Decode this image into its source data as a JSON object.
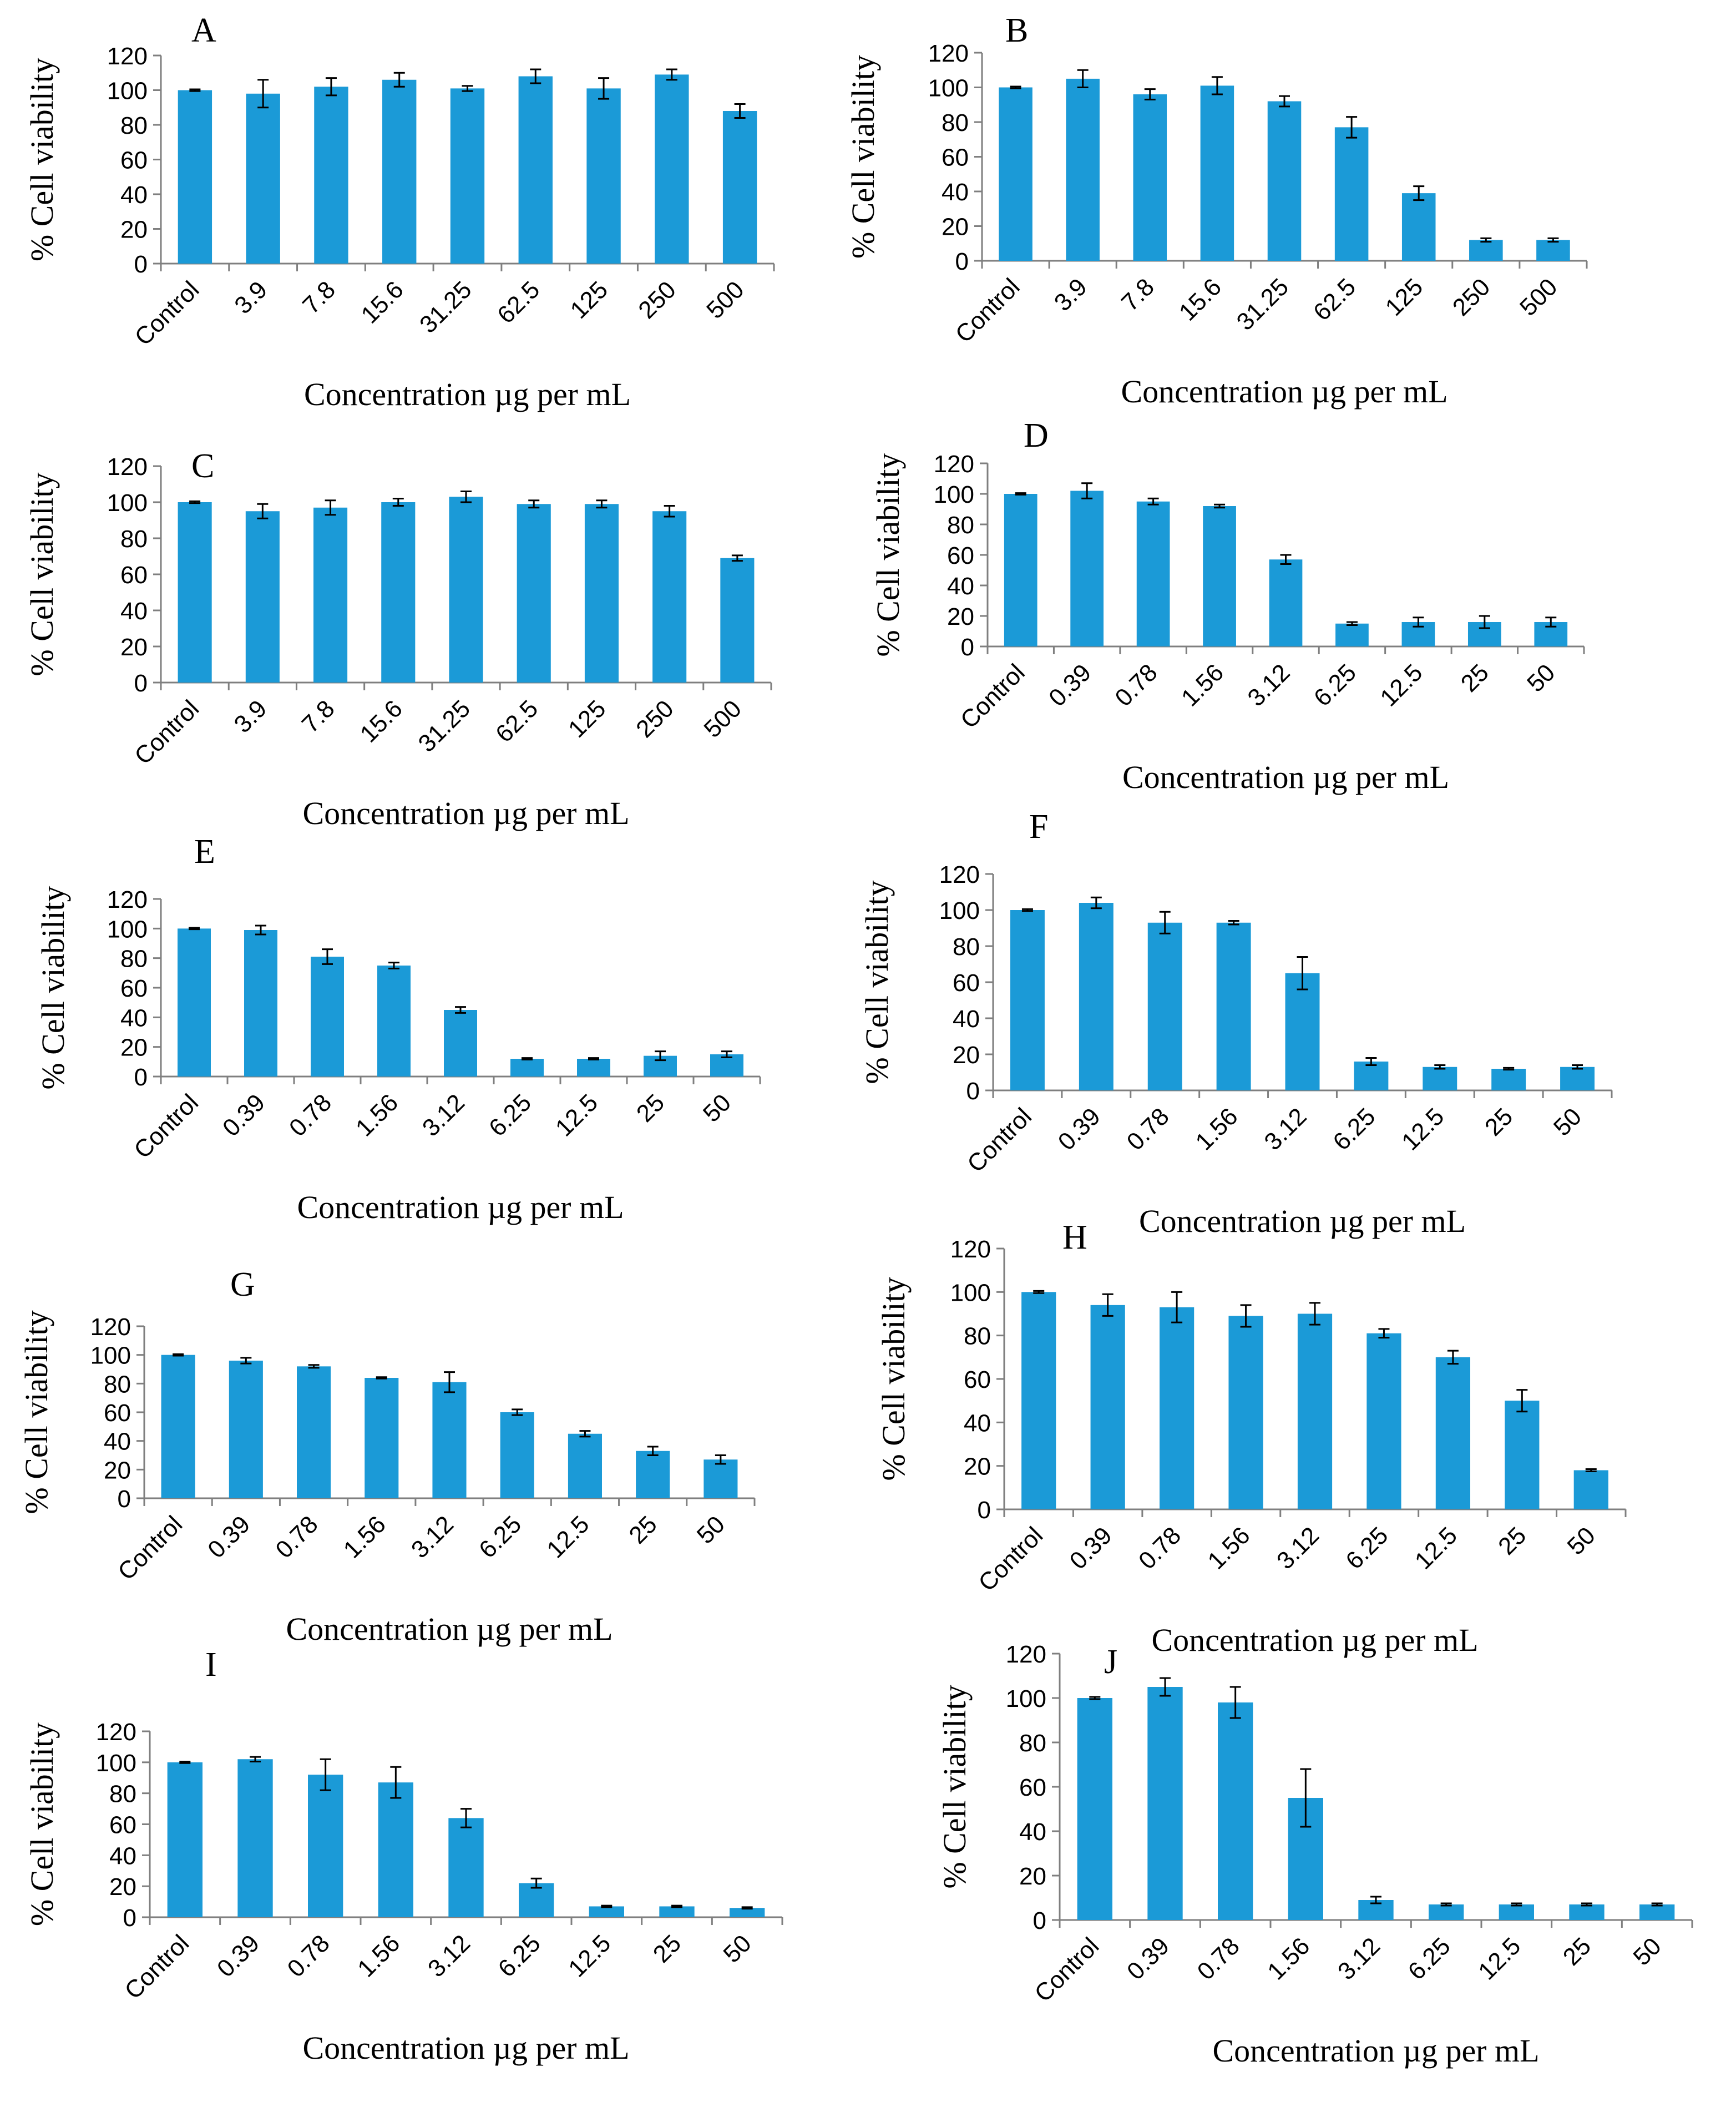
{
  "figure": {
    "title": "% Cell viability vs Concentration (10 panels)"
  },
  "colors": {
    "bar": "#1B9AD7",
    "axis": "#7f7f7f",
    "text": "#000000"
  },
  "chart_data": [
    {
      "panel": "A",
      "type": "bar",
      "ylabel": "% Cell viability",
      "xlabel": "Concentration µg per mL",
      "ylim": [
        0,
        120
      ],
      "yticks": [
        "0",
        "20",
        "40",
        "60",
        "80",
        "100",
        "120"
      ],
      "categories": [
        "Control",
        "3.9",
        "7.8",
        "15.6",
        "31.25",
        "62.5",
        "125",
        "250",
        "500"
      ],
      "values": [
        100,
        98,
        102,
        106,
        101,
        108,
        101,
        109,
        88
      ],
      "errors": [
        0.5,
        8,
        5,
        4,
        1.5,
        4,
        6,
        3,
        4
      ]
    },
    {
      "panel": "B",
      "type": "bar",
      "ylabel": "% Cell viability",
      "xlabel": "Concentration µg per mL",
      "ylim": [
        0,
        120
      ],
      "yticks": [
        "0",
        "20",
        "40",
        "60",
        "80",
        "100",
        "120"
      ],
      "categories": [
        "Control",
        "3.9",
        "7.8",
        "15.6",
        "31.25",
        "62.5",
        "125",
        "250",
        "500"
      ],
      "values": [
        100,
        105,
        96,
        101,
        92,
        77,
        39,
        12,
        12
      ],
      "errors": [
        0.5,
        5,
        3,
        5,
        3,
        6,
        4,
        1,
        1
      ]
    },
    {
      "panel": "C",
      "type": "bar",
      "ylabel": "% Cell viability",
      "xlabel": "Concentration µg per mL",
      "ylim": [
        0,
        120
      ],
      "yticks": [
        "0",
        "20",
        "40",
        "60",
        "80",
        "100",
        "120"
      ],
      "categories": [
        "Control",
        "3.9",
        "7.8",
        "15.6",
        "31.25",
        "62.5",
        "125",
        "250",
        "500"
      ],
      "values": [
        100,
        95,
        97,
        100,
        103,
        99,
        99,
        95,
        69
      ],
      "errors": [
        0.5,
        4,
        4,
        2,
        3,
        2,
        2,
        3,
        1.5
      ]
    },
    {
      "panel": "D",
      "type": "bar",
      "ylabel": "% Cell viability",
      "xlabel": "Concentration µg per mL",
      "ylim": [
        0,
        120
      ],
      "yticks": [
        "0",
        "20",
        "40",
        "60",
        "80",
        "100",
        "120"
      ],
      "categories": [
        "Control",
        "0.39",
        "0.78",
        "1.56",
        "3.12",
        "6.25",
        "12.5",
        "25",
        "50"
      ],
      "values": [
        100,
        102,
        95,
        92,
        57,
        15,
        16,
        16,
        16
      ],
      "errors": [
        0.5,
        5,
        2,
        1,
        3,
        1,
        3,
        4,
        3
      ]
    },
    {
      "panel": "E",
      "type": "bar",
      "ylabel": "% Cell viability",
      "xlabel": "Concentration µg per mL",
      "ylim": [
        0,
        120
      ],
      "yticks": [
        "0",
        "20",
        "40",
        "60",
        "80",
        "100",
        "120"
      ],
      "categories": [
        "Control",
        "0.39",
        "0.78",
        "1.56",
        "3.12",
        "6.25",
        "12.5",
        "25",
        "50"
      ],
      "values": [
        100,
        99,
        81,
        75,
        45,
        12,
        12,
        14,
        15
      ],
      "errors": [
        0.5,
        3,
        5,
        2,
        2,
        0.5,
        0.5,
        3,
        2
      ]
    },
    {
      "panel": "F",
      "type": "bar",
      "ylabel": "% Cell viability",
      "xlabel": "Concentration µg per mL",
      "ylim": [
        0,
        120
      ],
      "yticks": [
        "0",
        "20",
        "40",
        "60",
        "80",
        "100",
        "120"
      ],
      "categories": [
        "Control",
        "0.39",
        "0.78",
        "1.56",
        "3.12",
        "6.25",
        "12.5",
        "25",
        "50"
      ],
      "values": [
        100,
        104,
        93,
        93,
        65,
        16,
        13,
        12,
        13
      ],
      "errors": [
        0.5,
        3,
        6,
        1,
        9,
        2,
        1,
        0.5,
        1
      ]
    },
    {
      "panel": "G",
      "type": "bar",
      "ylabel": "% Cell viability",
      "xlabel": "Concentration µg per mL",
      "ylim": [
        0,
        120
      ],
      "yticks": [
        "0",
        "20",
        "40",
        "60",
        "80",
        "100",
        "120"
      ],
      "categories": [
        "Control",
        "0.39",
        "0.78",
        "1.56",
        "3.12",
        "6.25",
        "12.5",
        "25",
        "50"
      ],
      "values": [
        100,
        96,
        92,
        84,
        81,
        60,
        45,
        33,
        27
      ],
      "errors": [
        0.5,
        2,
        1,
        0.5,
        7,
        2,
        2,
        3,
        3
      ]
    },
    {
      "panel": "H",
      "type": "bar",
      "ylabel": "% Cell viability",
      "xlabel": "Concentration µg per mL",
      "ylim": [
        0,
        120
      ],
      "yticks": [
        "0",
        "20",
        "40",
        "60",
        "80",
        "100",
        "120"
      ],
      "categories": [
        "Control",
        "0.39",
        "0.78",
        "1.56",
        "3.12",
        "6.25",
        "12.5",
        "25",
        "50"
      ],
      "values": [
        100,
        94,
        93,
        89,
        90,
        81,
        70,
        50,
        18
      ],
      "errors": [
        0.5,
        5,
        7,
        5,
        5,
        2,
        3,
        5,
        0.5
      ]
    },
    {
      "panel": "I",
      "type": "bar",
      "ylabel": "% Cell viability",
      "xlabel": "Concentration µg per mL",
      "ylim": [
        0,
        120
      ],
      "yticks": [
        "0",
        "20",
        "40",
        "60",
        "80",
        "100",
        "120"
      ],
      "categories": [
        "Control",
        "0.39",
        "0.78",
        "1.56",
        "3.12",
        "6.25",
        "12.5",
        "25",
        "50"
      ],
      "values": [
        100,
        102,
        92,
        87,
        64,
        22,
        7,
        7,
        6
      ],
      "errors": [
        0.5,
        1.5,
        10,
        10,
        6,
        3,
        0.5,
        0.5,
        0.5
      ]
    },
    {
      "panel": "J",
      "type": "bar",
      "ylabel": "% Cell viability",
      "xlabel": "Concentration µg per mL",
      "ylim": [
        0,
        120
      ],
      "yticks": [
        "0",
        "20",
        "40",
        "60",
        "80",
        "100",
        "120"
      ],
      "categories": [
        "Control",
        "0.39",
        "0.78",
        "1.56",
        "3.12",
        "6.25",
        "12.5",
        "25",
        "50"
      ],
      "values": [
        100,
        105,
        98,
        55,
        9,
        7,
        7,
        7,
        7
      ],
      "errors": [
        0.5,
        4,
        7,
        13,
        1.5,
        0.5,
        0.5,
        0.5,
        0.5
      ]
    }
  ]
}
